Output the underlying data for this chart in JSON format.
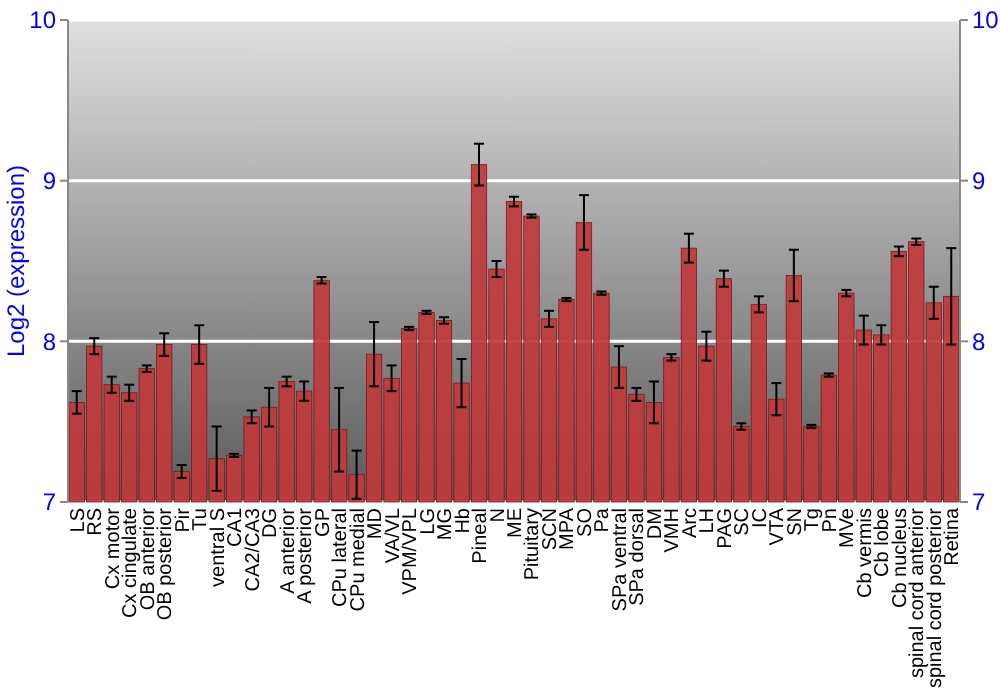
{
  "chart_data": {
    "type": "bar",
    "ylabel": "Log2 (expression)",
    "categories": [
      "LS",
      "RS",
      "Cx motor",
      "Cx cingulate",
      "OB anterior",
      "OB posterior",
      "Pir",
      "Tu",
      "ventral S",
      "CA1",
      "CA2/CA3",
      "DG",
      "A anterior",
      "A posterior",
      "GP",
      "CPu lateral",
      "CPu medial",
      "MD",
      "VA/VL",
      "VPM/VPL",
      "LG",
      "MG",
      "Hb",
      "Pineal",
      "N",
      "ME",
      "Pituitary",
      "SCN",
      "MPA",
      "SO",
      "Pa",
      "SPa ventral",
      "SPa dorsal",
      "DM",
      "VMH",
      "Arc",
      "LH",
      "PAG",
      "SC",
      "IC",
      "VTA",
      "SN",
      "Tg",
      "Pn",
      "MVe",
      "Cb vermis",
      "Cb lobe",
      "Cb nucleus",
      "spinal cord anterior",
      "spinal cord posterior",
      "Retina"
    ],
    "values": [
      7.62,
      7.97,
      7.73,
      7.68,
      7.83,
      7.98,
      7.19,
      7.98,
      7.27,
      7.29,
      7.53,
      7.59,
      7.75,
      7.69,
      8.38,
      7.45,
      7.17,
      7.92,
      7.77,
      8.08,
      8.18,
      8.13,
      7.74,
      9.1,
      8.45,
      8.87,
      8.78,
      8.14,
      8.26,
      8.74,
      8.3,
      7.84,
      7.67,
      7.62,
      7.9,
      8.58,
      7.97,
      8.39,
      7.47,
      8.23,
      7.64,
      8.41,
      7.47,
      7.79,
      8.3,
      8.07,
      8.04,
      8.56,
      8.62,
      8.24,
      8.28
    ],
    "errors": [
      0.07,
      0.05,
      0.05,
      0.05,
      0.02,
      0.07,
      0.04,
      0.12,
      0.2,
      0.01,
      0.04,
      0.12,
      0.03,
      0.06,
      0.02,
      0.26,
      0.15,
      0.2,
      0.08,
      0.01,
      0.01,
      0.02,
      0.15,
      0.13,
      0.05,
      0.03,
      0.01,
      0.05,
      0.01,
      0.17,
      0.01,
      0.13,
      0.04,
      0.13,
      0.02,
      0.09,
      0.09,
      0.05,
      0.02,
      0.05,
      0.1,
      0.16,
      0.01,
      0.01,
      0.02,
      0.09,
      0.06,
      0.03,
      0.02,
      0.1,
      0.3
    ],
    "color": "#c0393b",
    "ylim": [
      7,
      10
    ],
    "yticks": [
      7,
      8,
      9,
      10
    ],
    "y2lim": [
      7,
      10
    ],
    "y2ticks": [
      7,
      8,
      9,
      10
    ],
    "grid": "y"
  }
}
